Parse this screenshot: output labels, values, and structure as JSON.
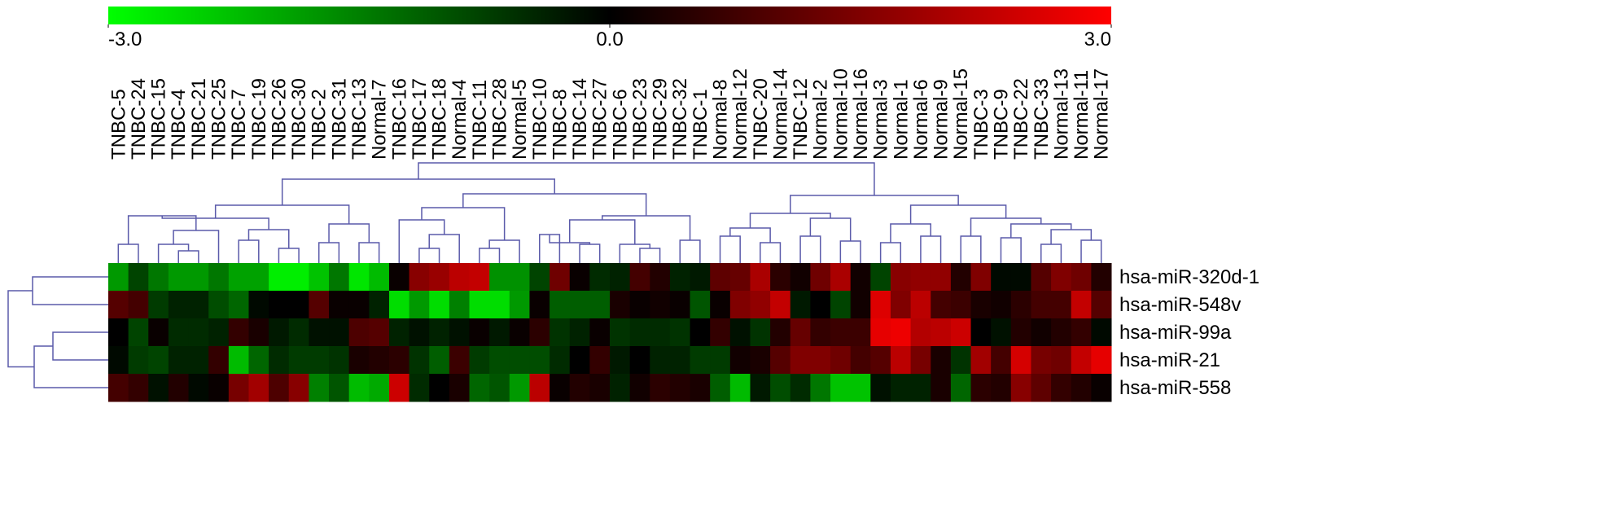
{
  "chart_data": {
    "type": "heatmap",
    "columns": [
      "TNBC-5",
      "TNBC-24",
      "TNBC-15",
      "TNBC-4",
      "TNBC-21",
      "TNBC-25",
      "TNBC-7",
      "TNBC-19",
      "TNBC-26",
      "TNBC-30",
      "TNBC-2",
      "TNBC-31",
      "TNBC-13",
      "Normal-7",
      "TNBC-16",
      "TNBC-17",
      "TNBC-18",
      "Normal-4",
      "TNBC-11",
      "TNBC-28",
      "Normal-5",
      "TNBC-10",
      "TNBC-8",
      "TNBC-14",
      "TNBC-27",
      "TNBC-6",
      "TNBC-23",
      "TNBC-29",
      "TNBC-32",
      "TNBC-1",
      "Normal-8",
      "Normal-12",
      "TNBC-20",
      "Normal-14",
      "TNBC-12",
      "Normal-2",
      "Normal-10",
      "Normal-16",
      "Normal-3",
      "Normal-1",
      "Normal-6",
      "Normal-9",
      "Normal-15",
      "TNBC-3",
      "TNBC-9",
      "TNBC-22",
      "TNBC-33",
      "Normal-13",
      "Normal-11",
      "Normal-17"
    ],
    "rows": [
      "hsa-miR-320d-1",
      "hsa-miR-548v",
      "hsa-miR-99a",
      "hsa-miR-21",
      "hsa-miR-558"
    ],
    "values": [
      [
        -1.8,
        -0.8,
        -1.4,
        -1.8,
        -1.8,
        -1.4,
        -1.9,
        -1.9,
        -2.8,
        -2.8,
        -2.3,
        -1.4,
        -2.7,
        -2.2,
        0.1,
        1.6,
        1.8,
        2.2,
        2.3,
        -1.7,
        -1.7,
        -0.8,
        1.3,
        0.1,
        -0.5,
        -0.4,
        0.8,
        0.4,
        -0.4,
        -0.3,
        1.1,
        1.2,
        2.0,
        0.5,
        0.2,
        1.3,
        2.0,
        0.2,
        -0.8,
        1.6,
        1.7,
        1.7,
        0.4,
        1.5,
        -0.1,
        -0.1,
        1.0,
        1.5,
        1.3,
        0.4
      ],
      [
        1.0,
        0.8,
        -0.7,
        -0.4,
        -0.4,
        -0.9,
        -1.2,
        -0.1,
        0,
        0,
        1.0,
        0.1,
        0.1,
        -0.4,
        -2.6,
        -1.8,
        -2.6,
        -1.5,
        -2.6,
        -2.6,
        -1.8,
        0.1,
        -1.1,
        -1.1,
        -1.1,
        0.3,
        0.1,
        0.2,
        0.1,
        -1.0,
        0.1,
        1.5,
        1.7,
        2.3,
        -0.3,
        0,
        -0.8,
        0.2,
        2.6,
        1.5,
        2.2,
        0.8,
        0.7,
        0.3,
        0.2,
        0.5,
        0.8,
        0.8,
        2.3,
        1.0
      ],
      [
        0,
        -0.8,
        0.1,
        -0.5,
        -0.5,
        -0.4,
        0.6,
        0.3,
        -0.3,
        -0.5,
        -0.2,
        -0.2,
        0.9,
        1.0,
        -0.4,
        -0.2,
        -0.4,
        -0.2,
        0.1,
        -0.3,
        0.1,
        0.5,
        -0.6,
        -0.4,
        0.1,
        -0.6,
        -0.5,
        -0.5,
        -0.6,
        0,
        0.6,
        -0.2,
        -0.6,
        0.4,
        1.2,
        0.6,
        0.7,
        0.7,
        2.7,
        2.8,
        2.1,
        2.2,
        2.4,
        0,
        -0.2,
        0.4,
        0.2,
        0.4,
        0.6,
        -0.1
      ],
      [
        -0.1,
        -0.7,
        -0.8,
        -0.4,
        -0.4,
        0.6,
        -2.2,
        -1.2,
        -0.5,
        -0.7,
        -0.7,
        -0.6,
        0.3,
        0.4,
        0.5,
        -0.6,
        -1.1,
        0.7,
        -0.7,
        -0.9,
        -0.9,
        -0.9,
        -0.5,
        0,
        0.6,
        -0.3,
        0,
        -0.4,
        -0.4,
        -0.7,
        -0.7,
        0.2,
        0.3,
        1.0,
        1.5,
        1.5,
        1.3,
        0.8,
        1.0,
        2.2,
        1.4,
        0.3,
        -0.6,
        1.9,
        0.8,
        2.5,
        1.4,
        1.3,
        2.3,
        2.7
      ],
      [
        0.8,
        0.6,
        -0.2,
        0.4,
        -0.1,
        0.1,
        1.4,
        1.9,
        0.9,
        1.6,
        -1.5,
        -1.0,
        -2.2,
        -2.0,
        2.4,
        -0.5,
        0,
        0.3,
        -1.2,
        -1.0,
        -1.8,
        2.2,
        0.1,
        0.4,
        0.3,
        -0.4,
        0.2,
        0.5,
        0.4,
        0.3,
        -1.1,
        -2.2,
        -0.3,
        -0.9,
        -0.5,
        -1.4,
        -2.3,
        -2.3,
        -0.2,
        -0.4,
        -0.4,
        0.3,
        -1.2,
        0.5,
        0.4,
        1.6,
        1.1,
        0.6,
        0.4,
        0.1
      ]
    ],
    "zlim": [
      -3,
      3
    ],
    "zticks": [
      {
        "value": -3,
        "label": "-3.0"
      },
      {
        "value": 0,
        "label": "0.0"
      },
      {
        "value": 3,
        "label": "3.0"
      }
    ],
    "colormap": {
      "low": "#00ff00",
      "mid": "#000000",
      "high": "#ff0000"
    },
    "dendrogram_color": "#5a5aaa"
  }
}
